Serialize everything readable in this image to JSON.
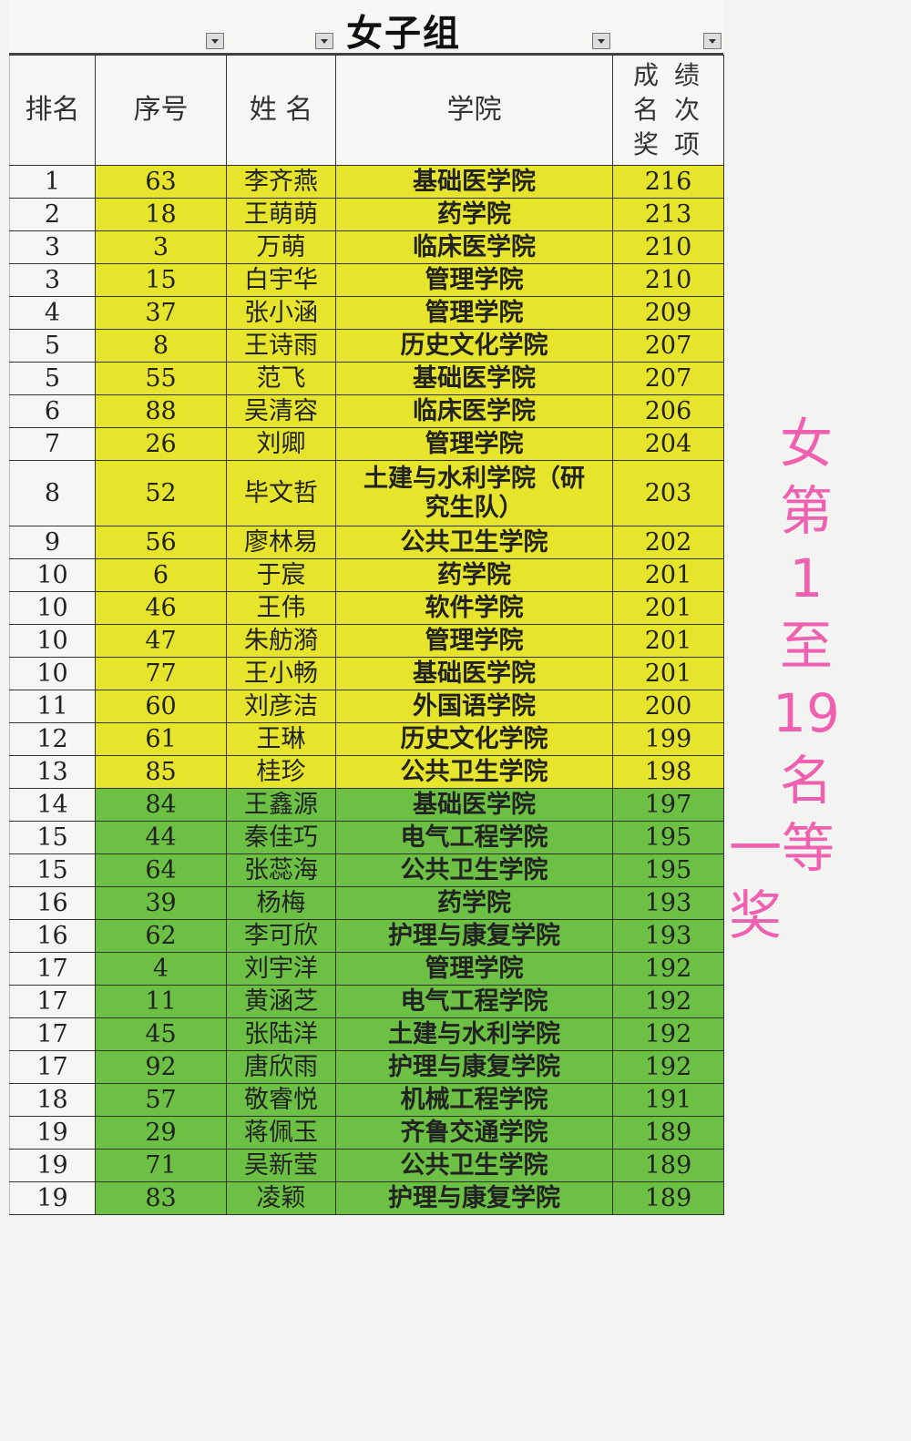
{
  "header": {
    "title": "女子组",
    "columns": [
      "排名",
      "序号",
      "姓 名",
      "学院",
      "成 绩 名 次 奖 项"
    ]
  },
  "tiers": [
    {
      "color": "#e6e52c",
      "rows": [
        [
          1,
          63,
          "李齐燕",
          "基础医学院",
          216
        ],
        [
          2,
          18,
          "王萌萌",
          "药学院",
          213
        ],
        [
          3,
          3,
          "万萌",
          "临床医学院",
          210
        ],
        [
          3,
          15,
          "白宇华",
          "管理学院",
          210
        ],
        [
          4,
          37,
          "张小涵",
          "管理学院",
          209
        ],
        [
          5,
          8,
          "王诗雨",
          "历史文化学院",
          207
        ],
        [
          5,
          55,
          "范飞",
          "基础医学院",
          207
        ],
        [
          6,
          88,
          "吴清容",
          "临床医学院",
          206
        ],
        [
          7,
          26,
          "刘卿",
          "管理学院",
          204
        ],
        [
          8,
          52,
          "毕文哲",
          "土建与水利学院（研究生队）",
          203
        ],
        [
          9,
          56,
          "廖林易",
          "公共卫生学院",
          202
        ],
        [
          10,
          6,
          "于宸",
          "药学院",
          201
        ],
        [
          10,
          46,
          "王伟",
          "软件学院",
          201
        ],
        [
          10,
          47,
          "朱舫漪",
          "管理学院",
          201
        ],
        [
          10,
          77,
          "王小畅",
          "基础医学院",
          201
        ],
        [
          11,
          60,
          "刘彦洁",
          "外国语学院",
          200
        ],
        [
          12,
          61,
          "王琳",
          "历史文化学院",
          199
        ],
        [
          13,
          85,
          "桂珍",
          "公共卫生学院",
          198
        ]
      ]
    },
    {
      "color": "#6cc145",
      "rows": [
        [
          14,
          84,
          "王鑫源",
          "基础医学院",
          197
        ],
        [
          15,
          44,
          "秦佳巧",
          "电气工程学院",
          195
        ],
        [
          15,
          64,
          "张蕊海",
          "公共卫生学院",
          195
        ],
        [
          16,
          39,
          "杨梅",
          "药学院",
          193
        ],
        [
          16,
          62,
          "李可欣",
          "护理与康复学院",
          193
        ],
        [
          17,
          4,
          "刘宇洋",
          "管理学院",
          192
        ],
        [
          17,
          11,
          "黄涵芝",
          "电气工程学院",
          192
        ],
        [
          17,
          45,
          "张陆洋",
          "土建与水利学院",
          192
        ],
        [
          17,
          92,
          "唐欣雨",
          "护理与康复学院",
          192
        ],
        [
          18,
          57,
          "敬睿悦",
          "机械工程学院",
          191
        ],
        [
          19,
          29,
          "蒋佩玉",
          "齐鲁交通学院",
          189
        ],
        [
          19,
          71,
          "吴新莹",
          "公共卫生学院",
          189
        ],
        [
          19,
          83,
          "凌颖",
          "护理与康复学院",
          189
        ]
      ]
    }
  ],
  "annotation": [
    "女",
    "第",
    "1",
    "至",
    "19",
    "名",
    "一等奖"
  ]
}
